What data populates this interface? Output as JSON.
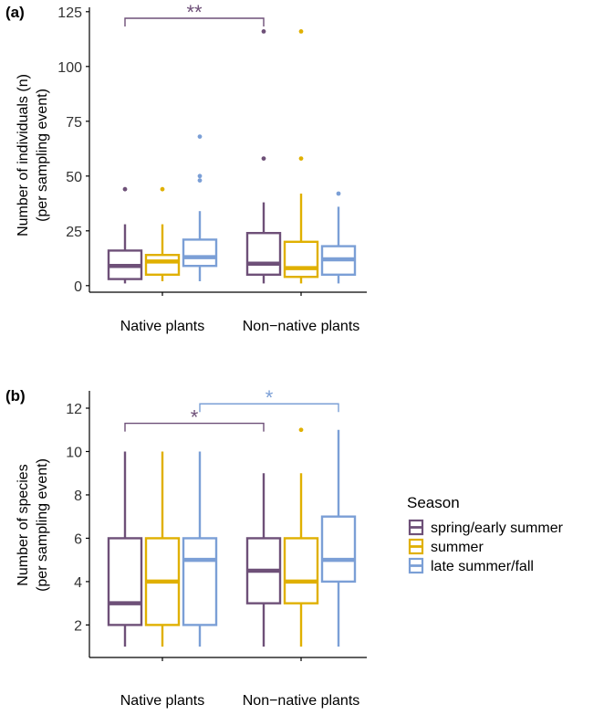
{
  "colors": {
    "spring/early summer": "#6e5078",
    "summer": "#e0b000",
    "late summer/fall": "#7b9fd6",
    "axis": "#000000",
    "tick_label": "#333333"
  },
  "legend": {
    "title": "Season",
    "entries": [
      "spring/early summer",
      "summer",
      "late summer/fall"
    ]
  },
  "chart_data": [
    {
      "type": "box",
      "panel_label": "(a)",
      "ylabel": "Number of individuals (n)",
      "ylabel2": "(per sampling event)",
      "categories": [
        "Native plants",
        "Non−native plants"
      ],
      "ylim": [
        -3,
        127
      ],
      "yticks": [
        0,
        25,
        50,
        75,
        100,
        125
      ],
      "yticklabels": [
        "0",
        "25",
        "50",
        "75",
        "100",
        "125"
      ],
      "series": [
        {
          "name": "spring/early summer",
          "boxes": [
            {
              "min": 1,
              "q1": 3,
              "median": 9,
              "q3": 16,
              "max": 28,
              "outliers": [
                44
              ]
            },
            {
              "min": 1,
              "q1": 5,
              "median": 10,
              "q3": 24,
              "max": 38,
              "outliers": [
                58,
                116
              ]
            }
          ]
        },
        {
          "name": "summer",
          "boxes": [
            {
              "min": 2,
              "q1": 5,
              "median": 11,
              "q3": 14,
              "max": 28,
              "outliers": [
                44
              ]
            },
            {
              "min": 1,
              "q1": 4,
              "median": 8,
              "q3": 20,
              "max": 42,
              "outliers": [
                58,
                116
              ]
            }
          ]
        },
        {
          "name": "late summer/fall",
          "boxes": [
            {
              "min": 2,
              "q1": 9,
              "median": 13,
              "q3": 21,
              "max": 34,
              "outliers": [
                48,
                50,
                68
              ]
            },
            {
              "min": 1,
              "q1": 5,
              "median": 12,
              "q3": 18,
              "max": 36,
              "outliers": [
                42
              ]
            }
          ]
        }
      ],
      "significance": [
        {
          "label": "**",
          "series": "spring/early summer",
          "from_category": "Native plants",
          "to_category": "Non−native plants",
          "y": 122
        }
      ]
    },
    {
      "type": "box",
      "panel_label": "(b)",
      "ylabel": "Number of species",
      "ylabel2": "(per sampling event)",
      "categories": [
        "Native plants",
        "Non−native plants"
      ],
      "ylim": [
        0.5,
        12.8
      ],
      "yticks": [
        2,
        4,
        6,
        8,
        10,
        12
      ],
      "yticklabels": [
        "2",
        "4",
        "6",
        "8",
        "10",
        "12"
      ],
      "series": [
        {
          "name": "spring/early summer",
          "boxes": [
            {
              "min": 1,
              "q1": 2,
              "median": 3,
              "q3": 6,
              "max": 10,
              "outliers": []
            },
            {
              "min": 1,
              "q1": 3,
              "median": 4.5,
              "q3": 6,
              "max": 9,
              "outliers": []
            }
          ]
        },
        {
          "name": "summer",
          "boxes": [
            {
              "min": 1,
              "q1": 2,
              "median": 4,
              "q3": 6,
              "max": 10,
              "outliers": []
            },
            {
              "min": 1,
              "q1": 3,
              "median": 4,
              "q3": 6,
              "max": 9,
              "outliers": [
                11
              ]
            }
          ]
        },
        {
          "name": "late summer/fall",
          "boxes": [
            {
              "min": 1,
              "q1": 2,
              "median": 5,
              "q3": 6,
              "max": 10,
              "outliers": []
            },
            {
              "min": 1,
              "q1": 4,
              "median": 5,
              "q3": 7,
              "max": 11,
              "outliers": []
            }
          ]
        }
      ],
      "significance": [
        {
          "label": "*",
          "series": "spring/early summer",
          "from_category": "Native plants",
          "to_category": "Non−native plants",
          "y": 11.3
        },
        {
          "label": "*",
          "series": "late summer/fall",
          "from_category": "Native plants",
          "to_category": "Non−native plants",
          "y": 12.2
        }
      ]
    }
  ]
}
